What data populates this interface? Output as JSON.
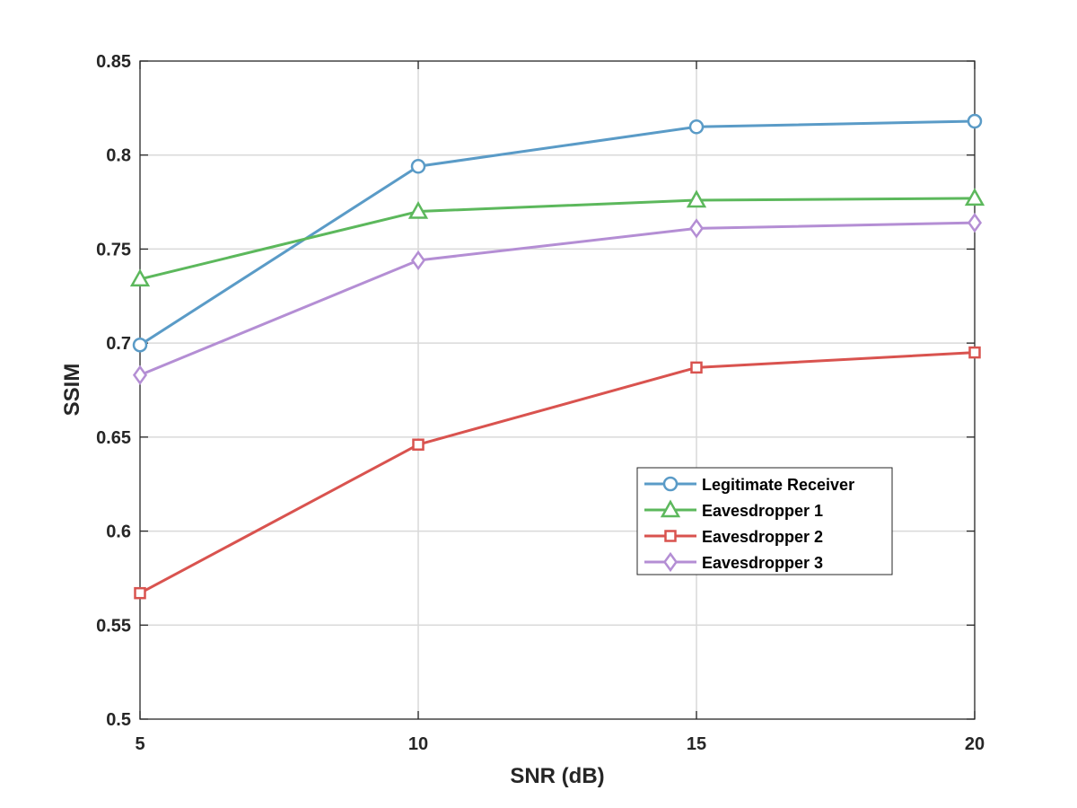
{
  "chart_data": {
    "type": "line",
    "xlabel": "SNR (dB)",
    "ylabel": "SSIM",
    "x": [
      5,
      10,
      15,
      20
    ],
    "xlim": [
      5,
      20
    ],
    "ylim": [
      0.5,
      0.85
    ],
    "xticks": [
      "5",
      "10",
      "15",
      "20"
    ],
    "yticks": [
      "0.5",
      "0.55",
      "0.6",
      "0.65",
      "0.7",
      "0.75",
      "0.8",
      "0.85"
    ],
    "grid": true,
    "legend_position": "right",
    "series": [
      {
        "name": "Legitimate Receiver",
        "values": [
          0.699,
          0.794,
          0.815,
          0.818
        ],
        "color": "#5a9bc7",
        "marker": "circle"
      },
      {
        "name": "Eavesdropper 1",
        "values": [
          0.734,
          0.77,
          0.776,
          0.777
        ],
        "color": "#5cb85c",
        "marker": "triangle"
      },
      {
        "name": "Eavesdropper 2",
        "values": [
          0.567,
          0.646,
          0.687,
          0.695
        ],
        "color": "#d9534f",
        "marker": "square"
      },
      {
        "name": "Eavesdropper 3",
        "values": [
          0.683,
          0.744,
          0.761,
          0.764
        ],
        "color": "#b48ed4",
        "marker": "diamond"
      }
    ]
  }
}
